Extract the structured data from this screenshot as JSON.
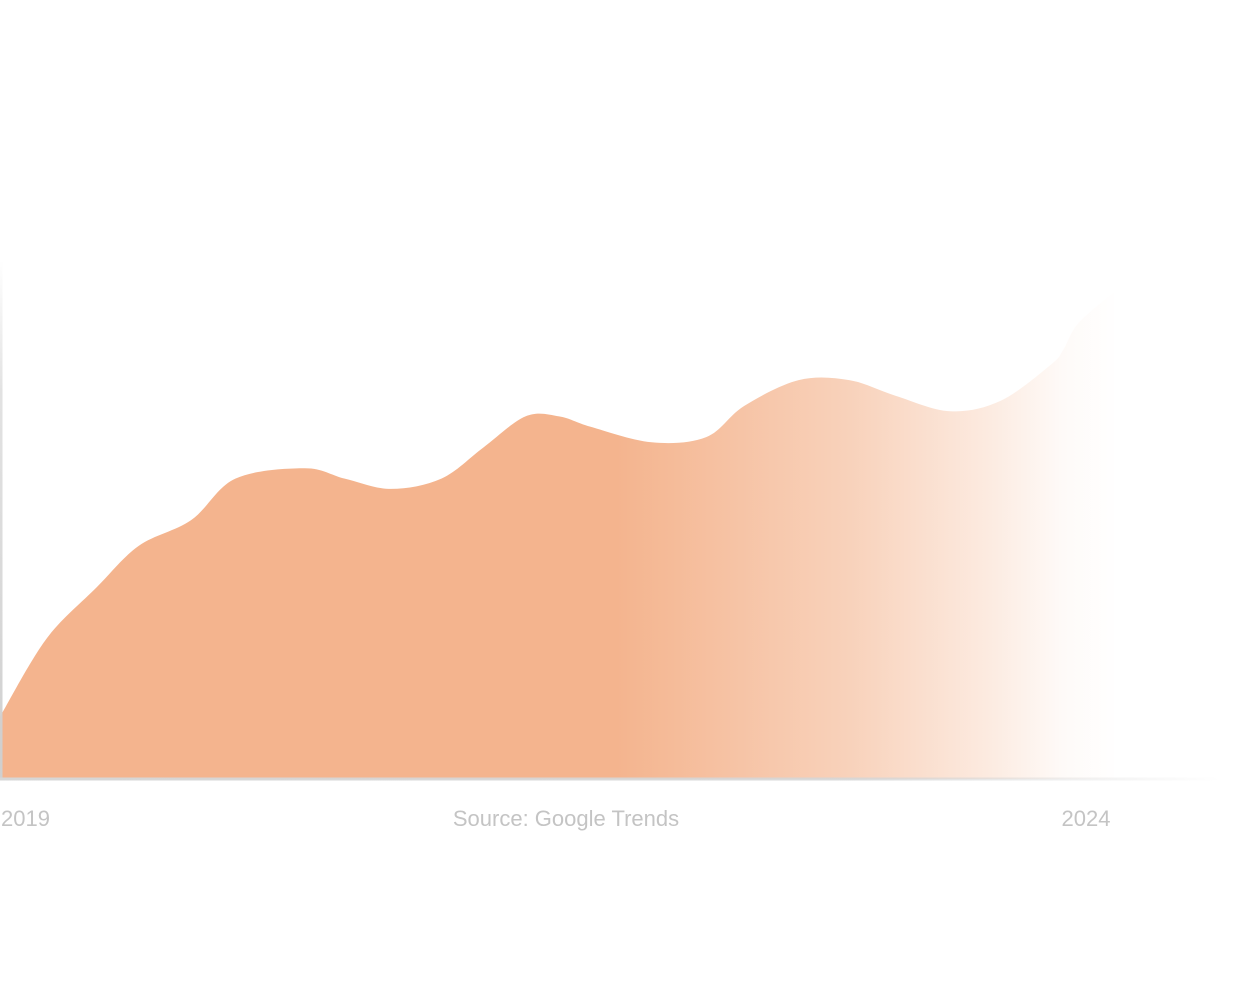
{
  "chart_data": {
    "type": "area",
    "title": "",
    "xlabel": "",
    "ylabel": "",
    "source_label": "Source: Google Trends",
    "x_tick_labels": [
      "2019",
      "2024"
    ],
    "xlim": [
      2019,
      2024.3
    ],
    "ylim": [
      0,
      100
    ],
    "grid": false,
    "legend": "none",
    "series": [
      {
        "x": [
          2019.0,
          2019.22,
          2019.46,
          2019.66,
          2019.91,
          2020.12,
          2020.45,
          2020.64,
          2020.86,
          2021.1,
          2021.3,
          2021.5,
          2021.66,
          2021.81,
          2022.1,
          2022.36,
          2022.54,
          2022.8,
          2023.04,
          2023.26,
          2023.52,
          2023.76,
          2024.0,
          2024.06,
          2024.13,
          2024.3
        ],
        "y": [
          12,
          27,
          37,
          45,
          50,
          58,
          60,
          58,
          56,
          58,
          64,
          70,
          70,
          68,
          65,
          66,
          72,
          77,
          77,
          74,
          71,
          73,
          80,
          83,
          88,
          94
        ]
      }
    ],
    "colors": {
      "fill": "#f4b48e",
      "axis": "#d6d6d6",
      "tick_text": "#c4c4c4"
    }
  }
}
